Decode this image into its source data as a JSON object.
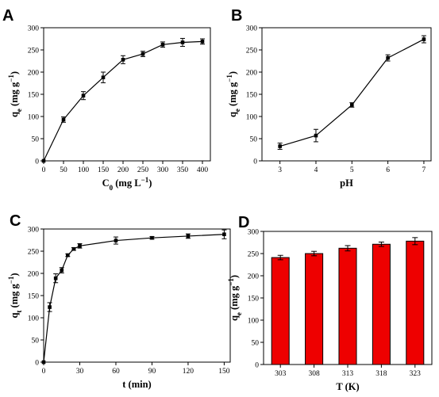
{
  "chart_data": [
    {
      "panel": "A",
      "type": "line",
      "xlabel_main": "C",
      "xlabel_sub": "0",
      "xlabel_unit_pre": " (mg L",
      "xlabel_unit_sup": "−1",
      "xlabel_unit_post": ")",
      "ylabel_main": "q",
      "ylabel_sub": "e",
      "ylabel_unit_pre": " (mg g",
      "ylabel_unit_sup": "−1",
      "ylabel_unit_post": ")",
      "xlim": [
        0,
        420
      ],
      "ylim": [
        0,
        300
      ],
      "xticks": [
        0,
        50,
        100,
        150,
        200,
        250,
        300,
        350,
        400
      ],
      "yticks": [
        0,
        50,
        100,
        150,
        200,
        250,
        300
      ],
      "x": [
        0,
        50,
        100,
        150,
        200,
        250,
        300,
        350,
        400
      ],
      "y": [
        0,
        93,
        147,
        188,
        228,
        241,
        262,
        267,
        269
      ],
      "err": [
        0,
        6,
        9,
        12,
        9,
        6,
        6,
        9,
        6
      ]
    },
    {
      "panel": "B",
      "type": "line",
      "xlabel_main": "pH",
      "ylabel_main": "q",
      "ylabel_sub": "e",
      "ylabel_unit_pre": " (mg g",
      "ylabel_unit_sup": "−1",
      "ylabel_unit_post": ")",
      "xlim": [
        2.5,
        7.2
      ],
      "ylim": [
        0,
        300
      ],
      "xticks": [
        3,
        4,
        5,
        6,
        7
      ],
      "yticks": [
        0,
        50,
        100,
        150,
        200,
        250,
        300
      ],
      "x": [
        3,
        4,
        5,
        6,
        7
      ],
      "y": [
        33,
        57,
        126,
        232,
        274
      ],
      "err": [
        7,
        14,
        5,
        7,
        8
      ]
    },
    {
      "panel": "C",
      "type": "line",
      "xlabel_main": "t (min)",
      "ylabel_main": "q",
      "ylabel_sub": "t",
      "ylabel_unit_pre": " (mg g",
      "ylabel_unit_sup": "−1",
      "ylabel_unit_post": ")",
      "xlim": [
        0,
        155
      ],
      "ylim": [
        0,
        300
      ],
      "xticks": [
        0,
        30,
        60,
        90,
        120,
        150
      ],
      "yticks": [
        0,
        50,
        100,
        150,
        200,
        250,
        300
      ],
      "x": [
        0,
        5,
        10,
        15,
        20,
        25,
        30,
        60,
        90,
        120,
        150
      ],
      "y": [
        0,
        124,
        189,
        207,
        241,
        255,
        262,
        274,
        280,
        284,
        288
      ],
      "err": [
        0,
        10,
        10,
        6,
        3,
        3,
        5,
        8,
        3,
        5,
        10
      ]
    },
    {
      "panel": "D",
      "type": "bar",
      "xlabel_main": "T (K)",
      "ylabel_main": "q",
      "ylabel_sub": "e",
      "ylabel_unit_pre": " (mg g",
      "ylabel_unit_sup": "−1",
      "ylabel_unit_post": ")",
      "ylim": [
        0,
        300
      ],
      "yticks": [
        0,
        50,
        100,
        150,
        200,
        250,
        300
      ],
      "categories": [
        "303",
        "308",
        "313",
        "318",
        "323"
      ],
      "values": [
        241,
        250,
        262,
        271,
        278
      ],
      "err": [
        5,
        5,
        6,
        5,
        8
      ],
      "bar_color": "#ee0000"
    }
  ]
}
